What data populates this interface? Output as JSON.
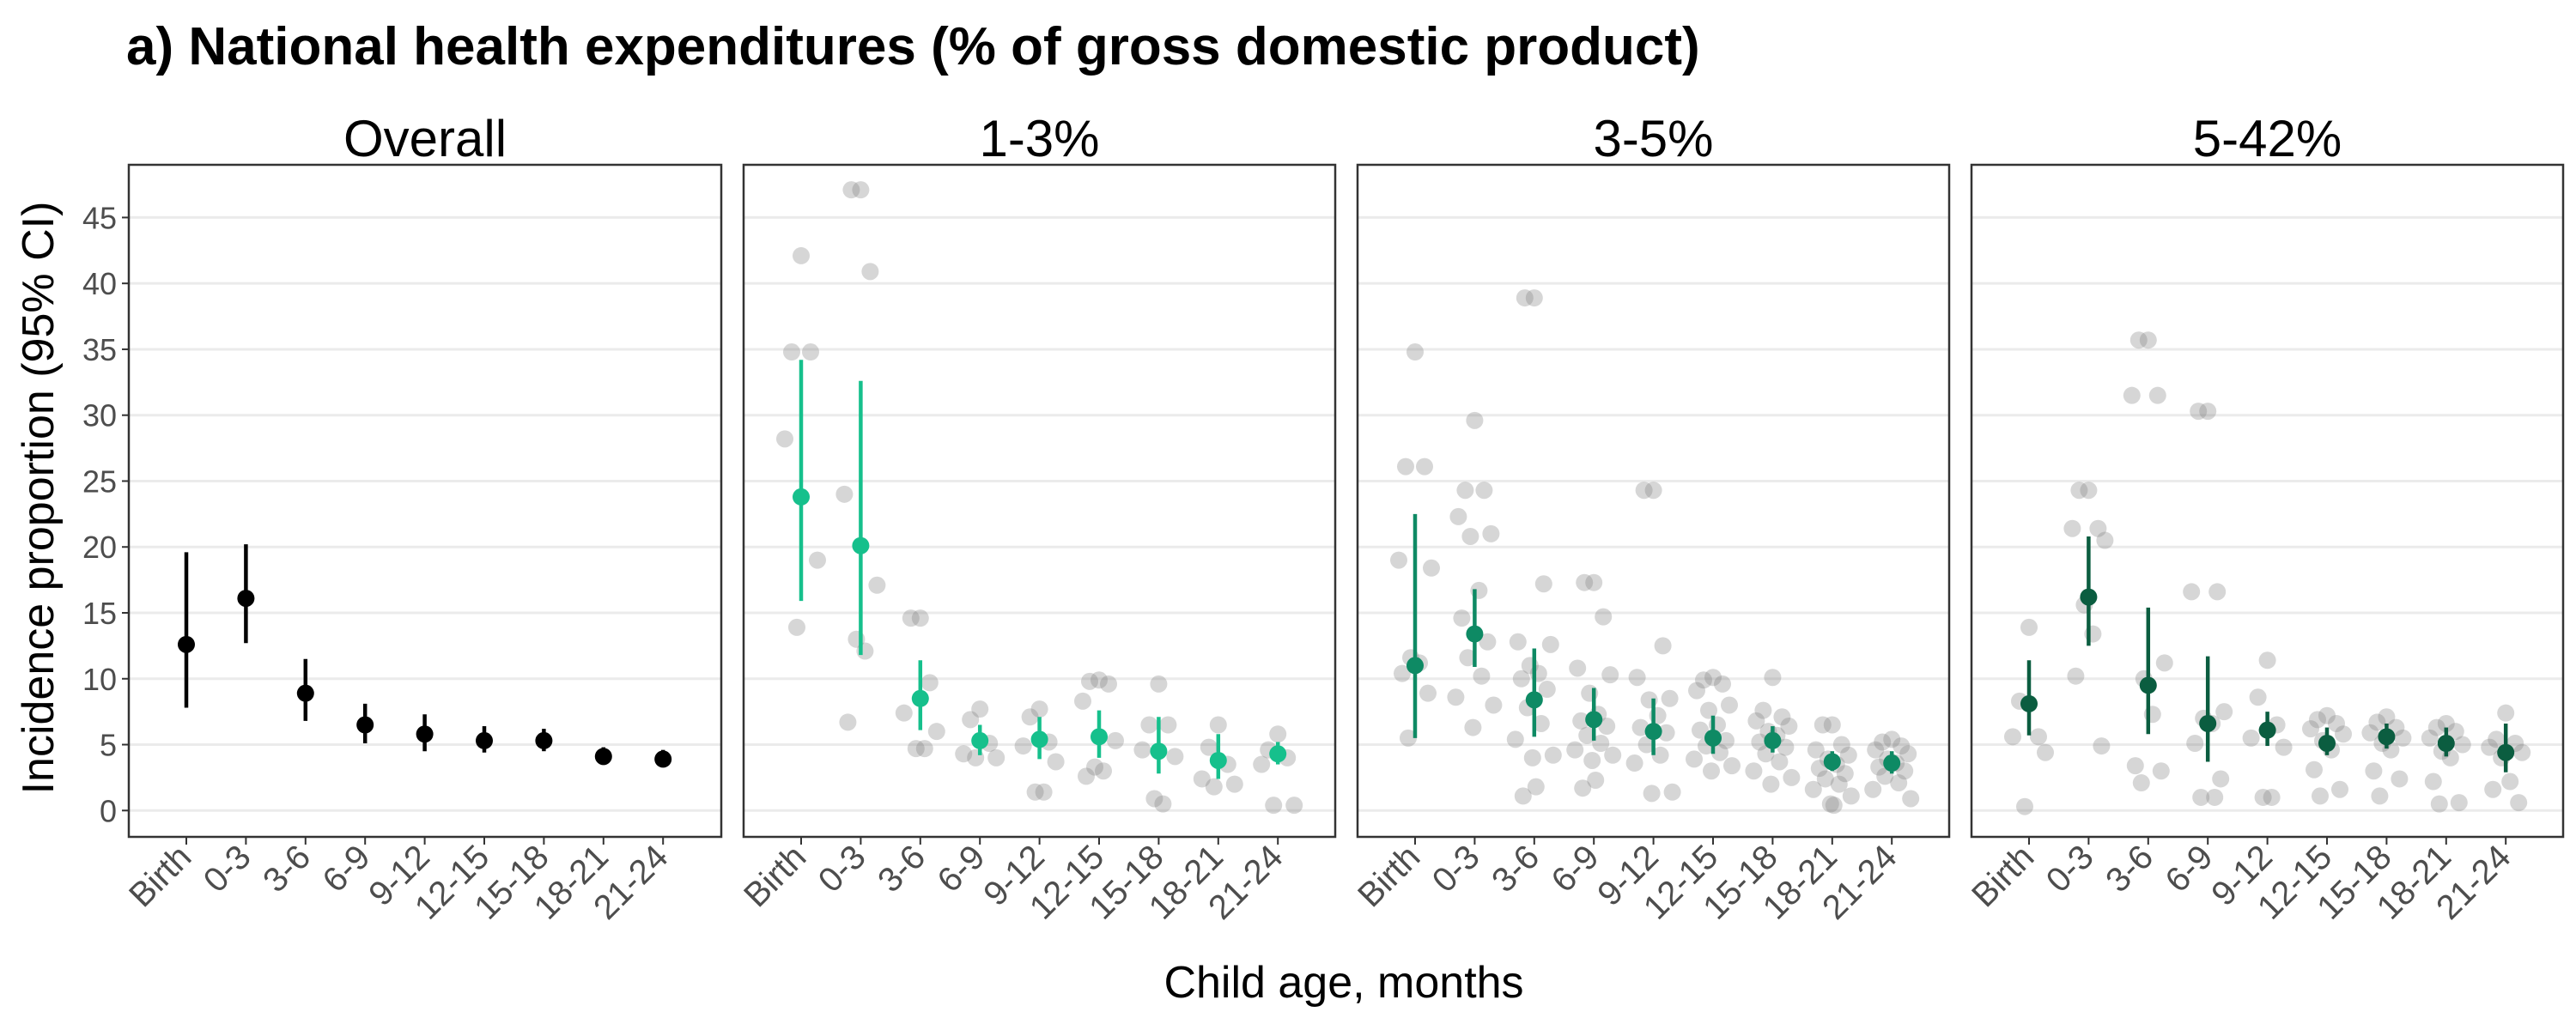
{
  "chart_data": {
    "type": "scatter",
    "title": "a) National health expenditures (% of gross domestic product)",
    "xlabel": "Child age, months",
    "ylabel": "Incidence proportion (95% CI)",
    "categories": [
      "Birth",
      "0-3",
      "3-6",
      "6-9",
      "9-12",
      "12-15",
      "15-18",
      "18-21",
      "21-24"
    ],
    "yticks": [
      0,
      5,
      10,
      15,
      20,
      25,
      30,
      35,
      40,
      45
    ],
    "ylim": [
      -2,
      49
    ],
    "grid": true,
    "facets": [
      {
        "name": "Overall",
        "color": "#000000",
        "estimates": [
          {
            "est": 12.6,
            "lo": 7.8,
            "hi": 19.6
          },
          {
            "est": 16.1,
            "lo": 12.7,
            "hi": 20.2
          },
          {
            "est": 8.9,
            "lo": 6.8,
            "hi": 11.5
          },
          {
            "est": 6.5,
            "lo": 5.1,
            "hi": 8.1
          },
          {
            "est": 5.8,
            "lo": 4.5,
            "hi": 7.3
          },
          {
            "est": 5.3,
            "lo": 4.4,
            "hi": 6.4
          },
          {
            "est": 5.3,
            "lo": 4.5,
            "hi": 6.2
          },
          {
            "est": 4.1,
            "lo": 3.5,
            "hi": 4.8
          },
          {
            "est": 3.9,
            "lo": 3.3,
            "hi": 4.6
          }
        ],
        "points": [
          [],
          [],
          [],
          [],
          [],
          [],
          [],
          [],
          []
        ]
      },
      {
        "name": "1-3%",
        "color": "#16c08c",
        "estimates": [
          {
            "est": 23.8,
            "lo": 15.9,
            "hi": 34.2
          },
          {
            "est": 20.1,
            "lo": 11.8,
            "hi": 32.6
          },
          {
            "est": 8.5,
            "lo": 6.1,
            "hi": 11.4
          },
          {
            "est": 5.3,
            "lo": 4.2,
            "hi": 6.5
          },
          {
            "est": 5.4,
            "lo": 3.9,
            "hi": 7.1
          },
          {
            "est": 5.6,
            "lo": 4.0,
            "hi": 7.6
          },
          {
            "est": 4.5,
            "lo": 2.8,
            "hi": 7.1
          },
          {
            "est": 3.8,
            "lo": 2.4,
            "hi": 5.8
          },
          {
            "est": 4.3,
            "lo": 3.5,
            "hi": 5.2
          }
        ],
        "points": [
          [
            42.1,
            34.8,
            34.8,
            28.2,
            19.0,
            13.9
          ],
          [
            47.1,
            47.1,
            40.9,
            24.0,
            17.1,
            13.0,
            12.1,
            6.7
          ],
          [
            14.6,
            14.6,
            9.7,
            7.4,
            6.0,
            4.7,
            4.7
          ],
          [
            7.7,
            6.9,
            5.1,
            4.3,
            4.0,
            4.0
          ],
          [
            7.7,
            7.1,
            5.2,
            4.9,
            3.7,
            1.4,
            1.4
          ],
          [
            9.9,
            9.8,
            9.6,
            8.3,
            5.3,
            3.3,
            3.0,
            2.6
          ],
          [
            9.6,
            6.5,
            6.5,
            4.6,
            4.1,
            0.9,
            0.5
          ],
          [
            6.5,
            4.8,
            3.5,
            2.4,
            2.0,
            1.8
          ],
          [
            5.8,
            4.6,
            4.0,
            3.5,
            0.4,
            0.4
          ]
        ]
      },
      {
        "name": "3-5%",
        "color": "#0e8a64",
        "estimates": [
          {
            "est": 11.0,
            "lo": 5.5,
            "hi": 22.5
          },
          {
            "est": 13.4,
            "lo": 10.9,
            "hi": 16.8
          },
          {
            "est": 8.4,
            "lo": 5.6,
            "hi": 12.3
          },
          {
            "est": 6.9,
            "lo": 5.3,
            "hi": 9.3
          },
          {
            "est": 6.0,
            "lo": 4.2,
            "hi": 8.5
          },
          {
            "est": 5.5,
            "lo": 4.3,
            "hi": 7.2
          },
          {
            "est": 5.3,
            "lo": 4.4,
            "hi": 6.4
          },
          {
            "est": 3.7,
            "lo": 3.0,
            "hi": 4.5
          },
          {
            "est": 3.6,
            "lo": 2.8,
            "hi": 4.5
          }
        ],
        "points": [
          [
            34.8,
            26.1,
            26.1,
            19.0,
            18.4,
            11.6,
            11.2,
            10.4,
            8.9,
            5.5
          ],
          [
            29.6,
            24.3,
            24.3,
            22.3,
            21.0,
            20.8,
            16.7,
            14.6,
            12.8,
            11.6,
            10.2,
            8.6,
            8.0,
            6.3
          ],
          [
            38.9,
            38.9,
            17.2,
            12.8,
            12.6,
            11.0,
            10.4,
            10.0,
            9.2,
            7.8,
            6.6,
            5.4,
            4.2,
            4.0,
            1.8,
            1.1
          ],
          [
            17.3,
            17.3,
            14.7,
            10.8,
            10.3,
            8.9,
            7.3,
            6.8,
            6.4,
            5.7,
            5.1,
            4.6,
            4.2,
            3.8,
            2.3,
            1.7
          ],
          [
            24.3,
            24.3,
            12.5,
            10.1,
            8.5,
            8.4,
            7.2,
            6.3,
            5.9,
            5.0,
            4.2,
            3.6,
            1.4,
            1.3
          ],
          [
            10.1,
            9.9,
            9.6,
            9.1,
            8.0,
            7.6,
            6.5,
            6.1,
            5.3,
            4.9,
            4.4,
            3.9,
            3.4,
            3.0
          ],
          [
            10.1,
            7.6,
            7.1,
            6.8,
            6.4,
            6.0,
            5.7,
            5.2,
            4.8,
            4.3,
            3.7,
            3.0,
            2.5,
            2.0
          ],
          [
            6.5,
            6.5,
            5.0,
            4.6,
            4.2,
            3.9,
            3.5,
            3.2,
            2.8,
            2.4,
            2.0,
            1.6,
            1.1,
            0.5,
            0.4
          ],
          [
            5.4,
            5.2,
            4.9,
            4.6,
            4.3,
            3.9,
            3.6,
            3.3,
            3.0,
            2.6,
            2.1,
            1.6,
            0.9
          ]
        ]
      },
      {
        "name": "5-42%",
        "color": "#0b5d40",
        "estimates": [
          {
            "est": 8.1,
            "lo": 5.7,
            "hi": 11.4
          },
          {
            "est": 16.2,
            "lo": 12.5,
            "hi": 20.8
          },
          {
            "est": 9.5,
            "lo": 5.8,
            "hi": 15.4
          },
          {
            "est": 6.6,
            "lo": 3.7,
            "hi": 11.7
          },
          {
            "est": 6.1,
            "lo": 4.9,
            "hi": 7.5
          },
          {
            "est": 5.1,
            "lo": 4.2,
            "hi": 6.3
          },
          {
            "est": 5.6,
            "lo": 4.7,
            "hi": 6.6
          },
          {
            "est": 5.1,
            "lo": 4.1,
            "hi": 6.3
          },
          {
            "est": 4.4,
            "lo": 2.9,
            "hi": 6.6
          }
        ],
        "points": [
          [
            13.9,
            8.3,
            5.6,
            5.6,
            4.4,
            0.3
          ],
          [
            24.3,
            24.3,
            21.4,
            21.4,
            20.5,
            15.6,
            13.4,
            10.2,
            4.9
          ],
          [
            35.7,
            35.7,
            31.5,
            31.5,
            11.2,
            10.0,
            7.3,
            3.4,
            3.0,
            2.1
          ],
          [
            30.3,
            30.3,
            16.6,
            16.6,
            7.5,
            7.0,
            6.6,
            5.1,
            2.4,
            1.0,
            1.0
          ],
          [
            11.4,
            8.6,
            6.5,
            5.5,
            4.8,
            1.0,
            1.0
          ],
          [
            7.2,
            6.9,
            6.6,
            6.2,
            5.8,
            5.3,
            4.6,
            3.1,
            1.6,
            1.1
          ],
          [
            7.1,
            6.7,
            6.3,
            5.9,
            5.5,
            5.1,
            4.6,
            3.0,
            2.4,
            1.1
          ],
          [
            6.6,
            6.3,
            6.0,
            5.5,
            5.0,
            4.5,
            4.0,
            2.2,
            0.6,
            0.5
          ],
          [
            7.4,
            5.4,
            5.1,
            4.8,
            4.4,
            4.0,
            2.2,
            1.6,
            0.6
          ]
        ]
      }
    ]
  }
}
